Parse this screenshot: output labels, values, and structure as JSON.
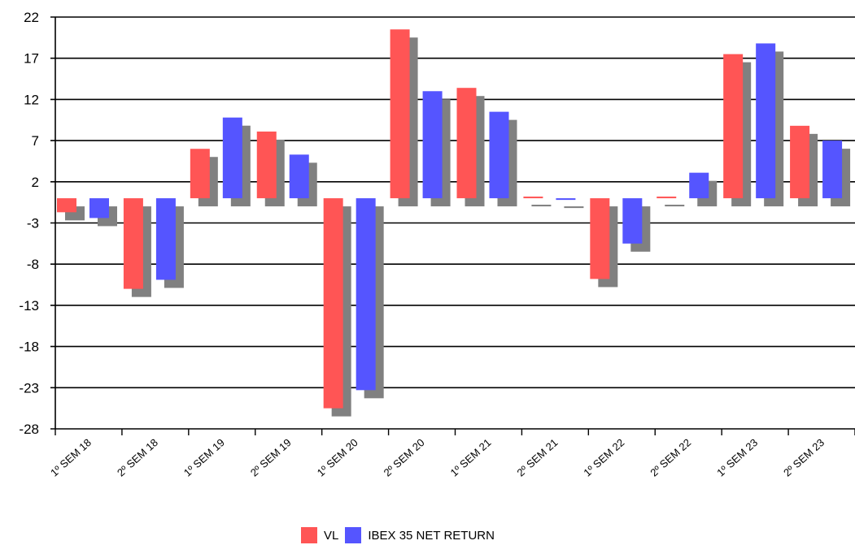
{
  "chart_data": {
    "type": "bar",
    "categories": [
      "1º SEM 18",
      "2º SEM 18",
      "1º SEM 19",
      "2º SEM 19",
      "1º SEM 20",
      "2º SEM 20",
      "1º SEM 21",
      "2º SEM 21",
      "1º SEM 22",
      "2º SEM 22",
      "1º SEM 23",
      "2º SEM 23"
    ],
    "series": [
      {
        "name": "VL",
        "color": "#ff5555",
        "values": [
          -1.7,
          -11.0,
          6.0,
          8.1,
          -25.5,
          20.5,
          13.4,
          0.2,
          -9.8,
          0.2,
          17.5,
          8.8
        ]
      },
      {
        "name": "IBEX 35 NET RETURN",
        "color": "#5555ff",
        "values": [
          -2.4,
          -9.9,
          9.8,
          5.3,
          -23.3,
          13.0,
          10.5,
          -0.2,
          -5.5,
          3.1,
          18.8,
          7.0
        ]
      }
    ],
    "ylim": [
      -28,
      22
    ],
    "yticks": [
      22,
      17,
      12,
      7,
      2,
      -3,
      -8,
      -13,
      -18,
      -23,
      -28
    ],
    "ytick_labels": [
      "22",
      "17",
      "12",
      "7",
      "2",
      "-3",
      "-8",
      "-13",
      "-18",
      "-23",
      "-28"
    ],
    "baseline": 0,
    "shadow_color": "#808080",
    "grid": true,
    "legend_position": "bottom-center",
    "title": "",
    "xlabel": "",
    "ylabel": ""
  },
  "legend": {
    "items": [
      {
        "label": "VL",
        "color": "#ff5555"
      },
      {
        "label": "IBEX 35 NET RETURN",
        "color": "#5555ff"
      }
    ]
  }
}
